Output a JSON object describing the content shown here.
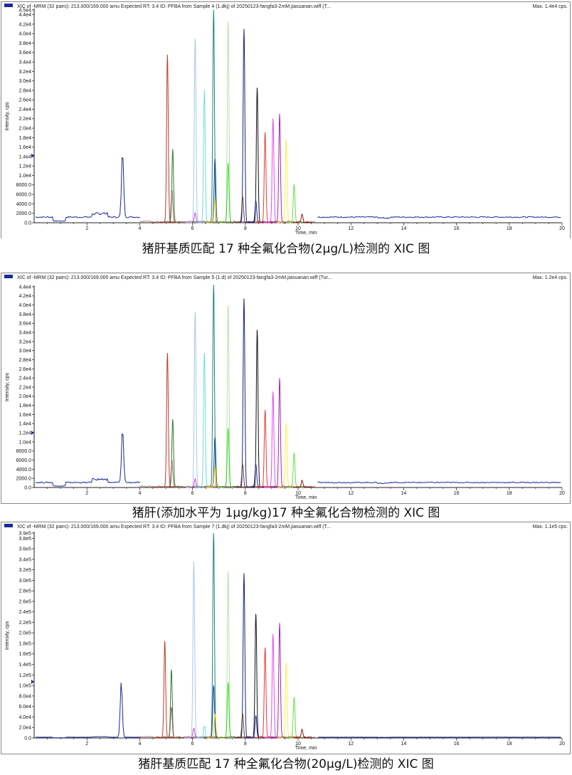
{
  "charts": [
    {
      "header": "XIC of -MRM (32 pairs): 213.000/169.000 amu Expected RT: 3.4 ID: PFBA from Sample 4 (1.dkj) of 20250123-fangfa3-2mM.jiasuanan.wiff (T...",
      "max_label": "Max. 1.4e4 cps.",
      "caption": "猪肝基质匹配 17 种全氟化合物(2μg/L)检测的 XIC 图",
      "chart_data": {
        "type": "line",
        "xlabel": "Time, min",
        "ylabel": "Intensity, cps",
        "xlim": [
          0,
          20
        ],
        "ylim": [
          0,
          45000
        ],
        "x_ticks": [
          2,
          4,
          6,
          8,
          10,
          12,
          14,
          16,
          18,
          20
        ],
        "y_ticks": [
          {
            "v": 0,
            "label": "0.0"
          },
          {
            "v": 2000,
            "label": "2000.0"
          },
          {
            "v": 4000,
            "label": "4000.0"
          },
          {
            "v": 6000,
            "label": "6000.0"
          },
          {
            "v": 8000,
            "label": "8000.0"
          },
          {
            "v": 10000,
            "label": "1.0e4"
          },
          {
            "v": 12000,
            "label": "1.2e4"
          },
          {
            "v": 14000,
            "label": "1.4e4"
          },
          {
            "v": 16000,
            "label": "1.6e4"
          },
          {
            "v": 18000,
            "label": "1.8e4"
          },
          {
            "v": 20000,
            "label": "2.0e4"
          },
          {
            "v": 22000,
            "label": "2.2e4"
          },
          {
            "v": 24000,
            "label": "2.4e4"
          },
          {
            "v": 26000,
            "label": "2.6e4"
          },
          {
            "v": 28000,
            "label": "2.8e4"
          },
          {
            "v": 30000,
            "label": "3.0e4"
          },
          {
            "v": 32000,
            "label": "3.2e4"
          },
          {
            "v": 34000,
            "label": "3.4e4"
          },
          {
            "v": 36000,
            "label": "3.6e4"
          },
          {
            "v": 38000,
            "label": "3.8e4"
          },
          {
            "v": 40000,
            "label": "4.0e4"
          },
          {
            "v": 42000,
            "label": "4.2e4"
          },
          {
            "v": 44000,
            "label": "4.4e4"
          },
          {
            "v": 45000,
            "label": "4.5e4"
          }
        ],
        "baseline": {
          "color": "#1a2a9a",
          "level": 1200
        },
        "peaks": [
          {
            "color": "#1a2a9a",
            "rt": 3.35,
            "height": 14200
          },
          {
            "color": "#c0392b",
            "rt": 5.05,
            "height": 35500
          },
          {
            "color": "#2e7d32",
            "rt": 5.25,
            "height": 15500
          },
          {
            "color": "#8d6e63",
            "rt": 5.22,
            "height": 7000
          },
          {
            "color": "#cc44cc",
            "rt": 6.1,
            "height": 2000
          },
          {
            "color": "#a8c8f0",
            "rt": 6.1,
            "height": 39000
          },
          {
            "color": "#66e0e0",
            "rt": 6.45,
            "height": 28000
          },
          {
            "color": "#1a8080",
            "rt": 6.8,
            "height": 45000
          },
          {
            "color": "#0d47a1",
            "rt": 6.85,
            "height": 13500
          },
          {
            "color": "#ffd600",
            "rt": 6.85,
            "height": 5000
          },
          {
            "color": "#b2e6a0",
            "rt": 7.35,
            "height": 42500
          },
          {
            "color": "#33dd33",
            "rt": 7.35,
            "height": 12500
          },
          {
            "color": "#1a237e",
            "rt": 7.95,
            "height": 41000
          },
          {
            "color": "#5d4037",
            "rt": 7.9,
            "height": 5500
          },
          {
            "color": "#111111",
            "rt": 8.45,
            "height": 28500
          },
          {
            "color": "#1a2a9a",
            "rt": 8.4,
            "height": 4500
          },
          {
            "color": "#e53935",
            "rt": 8.75,
            "height": 19000
          },
          {
            "color": "#ee44ee",
            "rt": 9.05,
            "height": 22000
          },
          {
            "color": "#9c27b0",
            "rt": 9.3,
            "height": 23000
          },
          {
            "color": "#ffee44",
            "rt": 9.55,
            "height": 17500
          },
          {
            "color": "#66dd44",
            "rt": 9.85,
            "height": 8000
          },
          {
            "color": "#8b1a1a",
            "rt": 10.15,
            "height": 1800
          }
        ]
      }
    },
    {
      "header": "XIC of -MRM (32 pairs): 213.000/169.000 amu Expected RT: 3.4 ID: PFBA from Sample 5 (1.d) of 20250123-fangfa3-2mM.jiasuanan.wiff (Tur...",
      "max_label": "Max. 1.2e4 cps.",
      "caption": "猪肝(添加水平为 1μg/kg)17 种全氟化合物检测的 XIC 图",
      "chart_data": {
        "type": "line",
        "xlabel": "Time, min",
        "ylabel": "Intensity, cps",
        "xlim": [
          0,
          20
        ],
        "ylim": [
          0,
          44000
        ],
        "x_ticks": [
          2,
          4,
          6,
          8,
          10,
          12,
          14,
          16,
          18,
          20
        ],
        "y_ticks": [
          {
            "v": 0,
            "label": "0.0"
          },
          {
            "v": 2000,
            "label": "2000.0"
          },
          {
            "v": 4000,
            "label": "4000.0"
          },
          {
            "v": 6000,
            "label": "6000.0"
          },
          {
            "v": 8000,
            "label": "8000.0"
          },
          {
            "v": 10000,
            "label": "1.0e4"
          },
          {
            "v": 12000,
            "label": "1.2e4"
          },
          {
            "v": 14000,
            "label": "1.4e4"
          },
          {
            "v": 16000,
            "label": "1.6e4"
          },
          {
            "v": 18000,
            "label": "1.8e4"
          },
          {
            "v": 20000,
            "label": "2.0e4"
          },
          {
            "v": 22000,
            "label": "2.2e4"
          },
          {
            "v": 24000,
            "label": "2.4e4"
          },
          {
            "v": 26000,
            "label": "2.6e4"
          },
          {
            "v": 28000,
            "label": "2.8e4"
          },
          {
            "v": 30000,
            "label": "3.0e4"
          },
          {
            "v": 32000,
            "label": "3.2e4"
          },
          {
            "v": 34000,
            "label": "3.4e4"
          },
          {
            "v": 36000,
            "label": "3.6e4"
          },
          {
            "v": 38000,
            "label": "3.8e4"
          },
          {
            "v": 40000,
            "label": "4.0e4"
          },
          {
            "v": 42000,
            "label": "4.2e4"
          },
          {
            "v": 44000,
            "label": "4.4e4"
          }
        ],
        "baseline": {
          "color": "#1a2a9a",
          "level": 1100
        },
        "peaks": [
          {
            "color": "#1a2a9a",
            "rt": 3.35,
            "height": 12000
          },
          {
            "color": "#c0392b",
            "rt": 5.05,
            "height": 29500
          },
          {
            "color": "#2e7d32",
            "rt": 5.25,
            "height": 15000
          },
          {
            "color": "#8d6e63",
            "rt": 5.22,
            "height": 6000
          },
          {
            "color": "#cc44cc",
            "rt": 6.1,
            "height": 1800
          },
          {
            "color": "#a8c8f0",
            "rt": 6.1,
            "height": 38500
          },
          {
            "color": "#66e0e0",
            "rt": 6.45,
            "height": 29500
          },
          {
            "color": "#1a8080",
            "rt": 6.8,
            "height": 44500
          },
          {
            "color": "#0d47a1",
            "rt": 6.85,
            "height": 11000
          },
          {
            "color": "#ffd600",
            "rt": 6.85,
            "height": 4500
          },
          {
            "color": "#b2e6a0",
            "rt": 7.35,
            "height": 40000
          },
          {
            "color": "#33dd33",
            "rt": 7.35,
            "height": 13000
          },
          {
            "color": "#1a237e",
            "rt": 7.95,
            "height": 41500
          },
          {
            "color": "#5d4037",
            "rt": 7.9,
            "height": 5000
          },
          {
            "color": "#111111",
            "rt": 8.45,
            "height": 34500
          },
          {
            "color": "#1a2a9a",
            "rt": 8.4,
            "height": 5000
          },
          {
            "color": "#e53935",
            "rt": 8.75,
            "height": 17000
          },
          {
            "color": "#ee44ee",
            "rt": 9.05,
            "height": 21000
          },
          {
            "color": "#9c27b0",
            "rt": 9.3,
            "height": 24000
          },
          {
            "color": "#ffee44",
            "rt": 9.55,
            "height": 14000
          },
          {
            "color": "#66dd44",
            "rt": 9.85,
            "height": 7500
          },
          {
            "color": "#8b1a1a",
            "rt": 10.15,
            "height": 1500
          }
        ]
      }
    },
    {
      "header": "XIC of -MRM (32 pairs): 213.000/169.000 amu Expected RT: 3.4 ID: PFBA from Sample 7 (1.dkj) of 20250123-fangfa3-2mM.jiasuanan.wiff (T...",
      "max_label": "Max. 1.1e5 cps.",
      "caption": "猪肝基质匹配 17 种全氟化合物(20μg/L)检测的 XIC 图",
      "chart_data": {
        "type": "line",
        "xlabel": "Time, min",
        "ylabel": "Intensity, cps",
        "xlim": [
          0,
          20
        ],
        "ylim": [
          0,
          390000
        ],
        "x_ticks": [
          2,
          4,
          6,
          8,
          10,
          12,
          14,
          16,
          18,
          20
        ],
        "y_ticks": [
          {
            "v": 0,
            "label": "0.0"
          },
          {
            "v": 20000,
            "label": "2.0e4"
          },
          {
            "v": 40000,
            "label": "4.0e4"
          },
          {
            "v": 60000,
            "label": "6.0e4"
          },
          {
            "v": 80000,
            "label": "8.0e4"
          },
          {
            "v": 100000,
            "label": "1.0e5"
          },
          {
            "v": 120000,
            "label": "1.2e5"
          },
          {
            "v": 140000,
            "label": "1.4e5"
          },
          {
            "v": 160000,
            "label": "1.6e5"
          },
          {
            "v": 180000,
            "label": "1.8e5"
          },
          {
            "v": 200000,
            "label": "2.0e5"
          },
          {
            "v": 220000,
            "label": "2.2e5"
          },
          {
            "v": 240000,
            "label": "2.4e5"
          },
          {
            "v": 260000,
            "label": "2.6e5"
          },
          {
            "v": 280000,
            "label": "2.8e5"
          },
          {
            "v": 300000,
            "label": "3.0e5"
          },
          {
            "v": 320000,
            "label": "3.2e5"
          },
          {
            "v": 340000,
            "label": "3.4e5"
          },
          {
            "v": 360000,
            "label": "3.6e5"
          },
          {
            "v": 380000,
            "label": "3.8e5"
          },
          {
            "v": 390000,
            "label": "3.9e5"
          }
        ],
        "baseline": {
          "color": "#1a2a9a",
          "level": 1500
        },
        "peaks": [
          {
            "color": "#1a2a9a",
            "rt": 3.3,
            "height": 107000
          },
          {
            "color": "#c0392b",
            "rt": 4.95,
            "height": 184000
          },
          {
            "color": "#2e7d32",
            "rt": 5.2,
            "height": 130000
          },
          {
            "color": "#8d6e63",
            "rt": 5.2,
            "height": 58000
          },
          {
            "color": "#cc44cc",
            "rt": 6.05,
            "height": 18000
          },
          {
            "color": "#a8c8f0",
            "rt": 6.05,
            "height": 335000
          },
          {
            "color": "#66e0e0",
            "rt": 6.45,
            "height": 22000
          },
          {
            "color": "#1a8080",
            "rt": 6.8,
            "height": 390000
          },
          {
            "color": "#0d47a1",
            "rt": 6.8,
            "height": 100000
          },
          {
            "color": "#ffd600",
            "rt": 6.85,
            "height": 45000
          },
          {
            "color": "#b2e6a0",
            "rt": 7.35,
            "height": 318000
          },
          {
            "color": "#33dd33",
            "rt": 7.35,
            "height": 105000
          },
          {
            "color": "#1a237e",
            "rt": 7.95,
            "height": 313000
          },
          {
            "color": "#5d4037",
            "rt": 7.9,
            "height": 45000
          },
          {
            "color": "#111111",
            "rt": 8.4,
            "height": 236000
          },
          {
            "color": "#1a2a9a",
            "rt": 8.4,
            "height": 42000
          },
          {
            "color": "#e53935",
            "rt": 8.75,
            "height": 172000
          },
          {
            "color": "#ee44ee",
            "rt": 9.05,
            "height": 198000
          },
          {
            "color": "#9c27b0",
            "rt": 9.3,
            "height": 218000
          },
          {
            "color": "#ffee44",
            "rt": 9.55,
            "height": 142000
          },
          {
            "color": "#66dd44",
            "rt": 9.85,
            "height": 78000
          },
          {
            "color": "#8b1a1a",
            "rt": 10.15,
            "height": 15000
          }
        ]
      }
    }
  ]
}
